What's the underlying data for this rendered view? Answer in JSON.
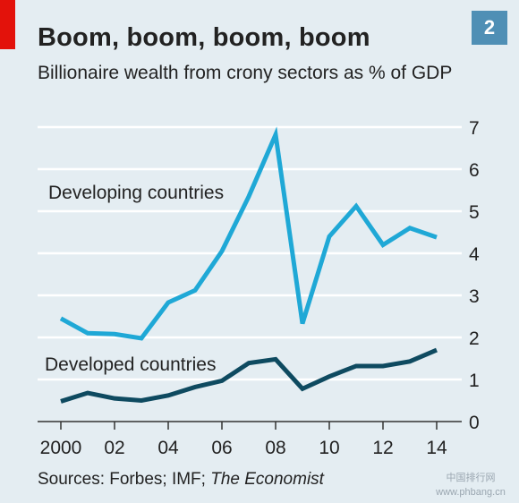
{
  "badge": "2",
  "title": "Boom, boom, boom, boom",
  "subtitle": "Billionaire wealth from crony sectors as % of GDP",
  "source_prefix": "Sources: Forbes; IMF; ",
  "source_italic": "The Economist",
  "watermark_top": "中国排行网",
  "watermark_bottom": "www.phbang.cn",
  "colors": {
    "developing": "#1fa8d6",
    "developed": "#0e4a60",
    "grid": "#ffffff",
    "baseline": "#333333"
  },
  "chart_data": {
    "type": "line",
    "x": [
      2000,
      2001,
      2002,
      2003,
      2004,
      2005,
      2006,
      2007,
      2008,
      2009,
      2010,
      2011,
      2012,
      2013,
      2014
    ],
    "x_tick_values": [
      2000,
      2002,
      2004,
      2006,
      2008,
      2010,
      2012,
      2014
    ],
    "x_tick_labels": [
      "2000",
      "02",
      "04",
      "06",
      "08",
      "10",
      "12",
      "14"
    ],
    "xlim": [
      2000,
      2014
    ],
    "ylim": [
      0,
      7
    ],
    "y_ticks": [
      0,
      1,
      2,
      3,
      4,
      5,
      6,
      7
    ],
    "y_axis_side": "right",
    "grid": true,
    "series": [
      {
        "name": "Developing countries",
        "values": [
          2.45,
          2.1,
          2.08,
          1.98,
          2.83,
          3.12,
          4.05,
          5.35,
          6.82,
          2.33,
          4.4,
          5.12,
          4.2,
          4.6,
          4.38
        ]
      },
      {
        "name": "Developed countries",
        "values": [
          0.48,
          0.68,
          0.55,
          0.5,
          0.62,
          0.82,
          0.97,
          1.39,
          1.48,
          0.78,
          1.07,
          1.32,
          1.32,
          1.43,
          1.7
        ]
      }
    ]
  }
}
